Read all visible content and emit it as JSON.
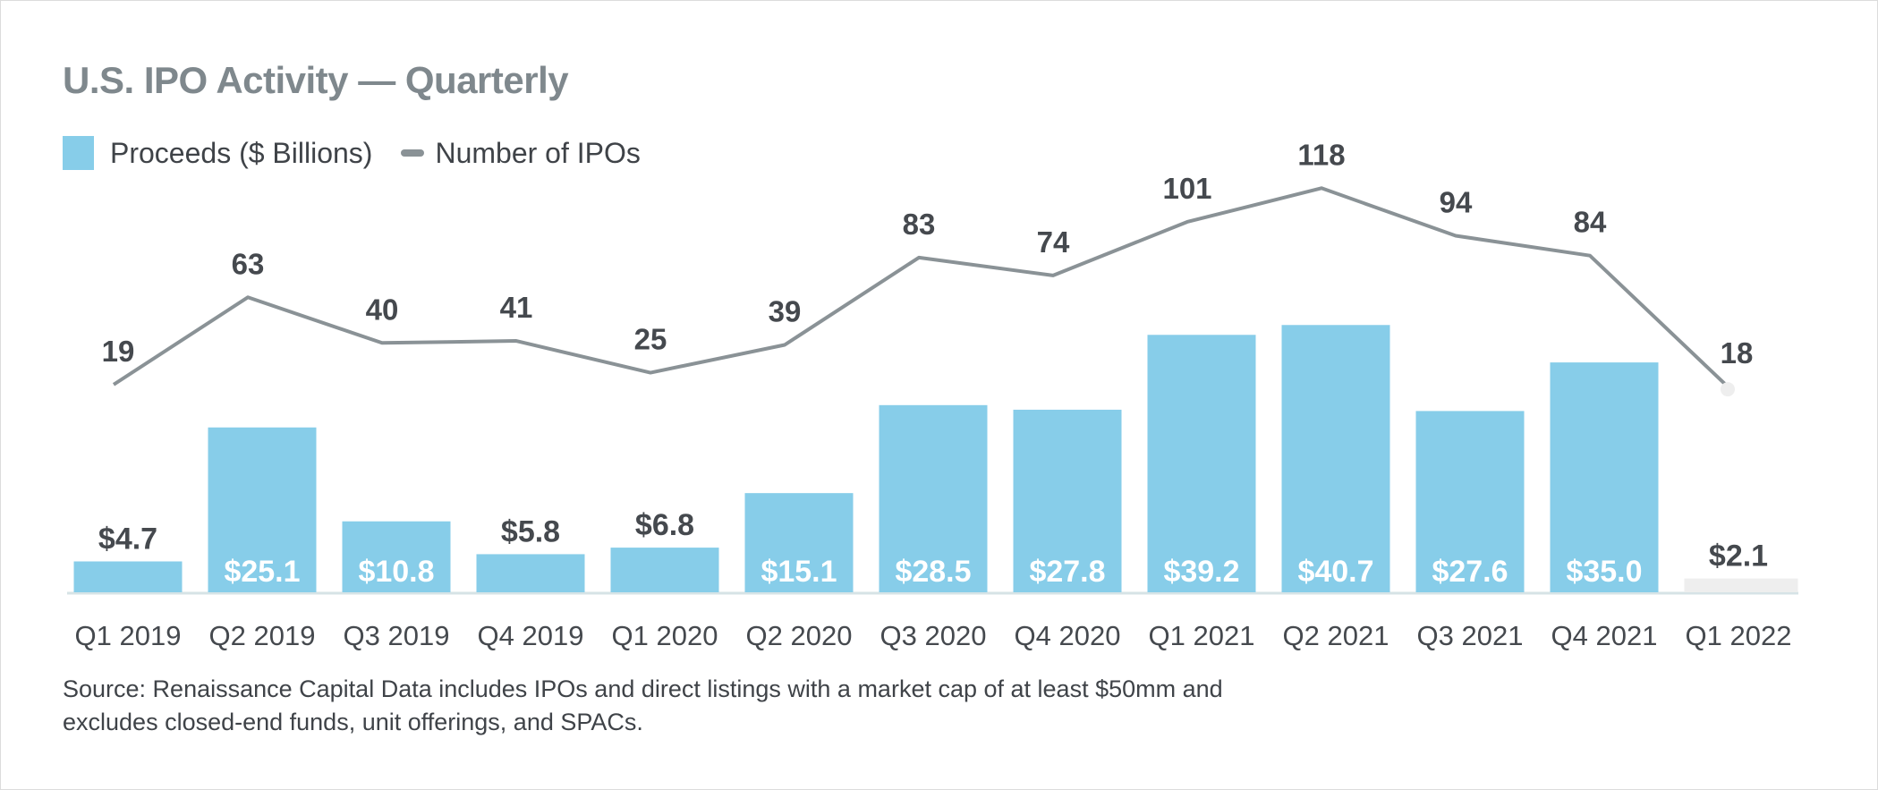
{
  "chart_data": {
    "type": "bar+line",
    "title": "U.S. IPO Activity — Quarterly",
    "categories": [
      "Q1 2019",
      "Q2 2019",
      "Q3 2019",
      "Q4 2019",
      "Q1 2020",
      "Q2 2020",
      "Q3 2020",
      "Q4 2020",
      "Q1 2021",
      "Q2 2021",
      "Q3 2021",
      "Q4 2021",
      "Q1 2022"
    ],
    "series": [
      {
        "name": "Proceeds ($ Billions)",
        "type": "bar",
        "color": "#87cde9",
        "values": [
          4.7,
          25.1,
          10.8,
          5.8,
          6.8,
          15.1,
          28.5,
          27.8,
          39.2,
          40.7,
          27.6,
          35.0,
          2.1
        ],
        "labels": [
          "$4.7",
          "$25.1",
          "$10.8",
          "$5.8",
          "$6.8",
          "$15.1",
          "$28.5",
          "$27.8",
          "$39.2",
          "$40.7",
          "$27.6",
          "$35.0",
          "$2.1"
        ],
        "highlight_last_color": "#eeeeee"
      },
      {
        "name": "Number of IPOs",
        "type": "line",
        "color": "#8a9296",
        "values": [
          19,
          63,
          40,
          41,
          25,
          39,
          83,
          74,
          101,
          118,
          94,
          84,
          18
        ],
        "labels": [
          "19",
          "63",
          "40",
          "41",
          "25",
          "39",
          "83",
          "74",
          "101",
          "118",
          "94",
          "84",
          "18"
        ]
      }
    ],
    "legend_position": "top-left",
    "grid": false,
    "source": "Source: Renaissance Capital Data includes IPOs and direct listings with a market cap of at least $50mm and excludes closed-end funds, unit offerings, and SPACs."
  }
}
